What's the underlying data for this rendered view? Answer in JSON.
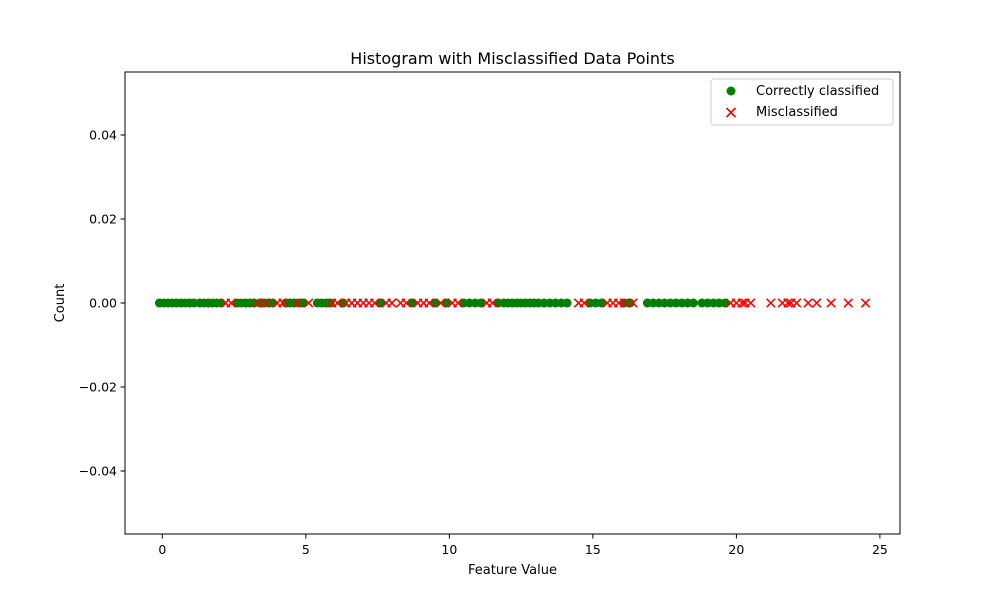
{
  "chart_data": {
    "type": "scatter",
    "title": "Histogram with Misclassified Data Points",
    "xlabel": "Feature Value",
    "ylabel": "Count",
    "xlim": [
      -1.3,
      25.7
    ],
    "ylim": [
      -0.055,
      0.055
    ],
    "x_ticks": [
      0,
      5,
      10,
      15,
      20,
      25
    ],
    "x_tick_labels": [
      "0",
      "5",
      "10",
      "15",
      "20",
      "25"
    ],
    "y_ticks": [
      -0.04,
      -0.02,
      0.0,
      0.02,
      0.04
    ],
    "y_tick_labels": [
      "−0.04",
      "−0.02",
      "0.00",
      "0.02",
      "0.04"
    ],
    "grid": false,
    "legend_position": "top-right",
    "series": [
      {
        "name": "Correctly classified",
        "marker": "circle",
        "color": "#008000",
        "y": 0,
        "x": [
          -0.1,
          0.05,
          0.2,
          0.35,
          0.5,
          0.65,
          0.8,
          0.95,
          1.1,
          1.3,
          1.45,
          1.6,
          1.75,
          1.9,
          2.05,
          2.6,
          2.75,
          2.9,
          3.05,
          3.2,
          3.4,
          3.55,
          3.7,
          3.85,
          4.3,
          4.45,
          4.6,
          4.75,
          4.9,
          5.4,
          5.55,
          5.7,
          5.85,
          6.3,
          7.6,
          8.7,
          9.5,
          9.9,
          10.5,
          10.7,
          10.9,
          11.1,
          11.7,
          11.9,
          12.05,
          12.2,
          12.35,
          12.5,
          12.65,
          12.8,
          12.95,
          13.1,
          13.3,
          13.5,
          13.7,
          13.9,
          14.1,
          14.9,
          15.1,
          15.3,
          16.1,
          16.3,
          16.9,
          17.1,
          17.3,
          17.5,
          17.7,
          17.9,
          18.1,
          18.3,
          18.5,
          18.8,
          19.0,
          19.2,
          19.4,
          19.6
        ]
      },
      {
        "name": "Misclassified",
        "marker": "x",
        "color": "#ff0000",
        "y": 0,
        "x": [
          2.2,
          2.4,
          3.3,
          3.6,
          4.0,
          4.2,
          4.7,
          5.1,
          5.9,
          6.1,
          6.4,
          6.6,
          6.8,
          7.0,
          7.2,
          7.4,
          7.8,
          8.0,
          8.3,
          8.5,
          8.9,
          9.1,
          9.3,
          9.7,
          10.1,
          10.3,
          11.3,
          11.5,
          14.5,
          14.7,
          15.5,
          15.7,
          15.9,
          16.1,
          16.4,
          19.8,
          20.0,
          20.2,
          20.3,
          20.5,
          21.2,
          21.6,
          21.8,
          21.9,
          22.1,
          22.5,
          22.8,
          23.3,
          23.9,
          24.5
        ]
      }
    ]
  }
}
